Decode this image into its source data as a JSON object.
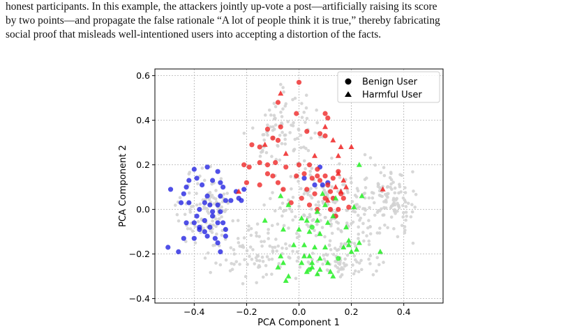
{
  "paragraph": {
    "lines": [
      "honest participants. In this example, the attackers jointly up-vote a post—artificially raising its score",
      "by two points—and propagate the false rationale “A lot of people think it is true,” thereby fabricating",
      "social proof that misleads well-intentioned users into accepting a distortion of the facts."
    ]
  },
  "chart_data": {
    "type": "scatter",
    "xlabel": "PCA Component 1",
    "ylabel": "PCA Component 2",
    "xlim": [
      -0.55,
      0.55
    ],
    "ylim": [
      -0.42,
      0.63
    ],
    "xticks": [
      -0.4,
      -0.2,
      0.0,
      0.2,
      0.4
    ],
    "yticks": [
      -0.4,
      -0.2,
      0.0,
      0.2,
      0.4,
      0.6
    ],
    "xtick_labels": [
      "−0.4",
      "−0.2",
      "0.0",
      "0.2",
      "0.4"
    ],
    "ytick_labels": [
      "−0.4",
      "−0.2",
      "0.0",
      "0.2",
      "0.4",
      "0.6"
    ],
    "grid": true,
    "legend_position": "top-right",
    "legend": [
      {
        "label": "Benign User",
        "marker": "circle"
      },
      {
        "label": "Harmful User",
        "marker": "triangle"
      }
    ],
    "colors": {
      "background": "#d3d3d3",
      "blue": "#1f1fe0",
      "red": "#ee2222",
      "green": "#22ee22"
    },
    "series": [
      {
        "color": "blue",
        "marker": "circle",
        "points": [
          [
            -0.49,
            0.09
          ],
          [
            -0.43,
            0.1
          ],
          [
            -0.42,
            0.13
          ],
          [
            -0.44,
            0.07
          ],
          [
            -0.4,
            0.18
          ],
          [
            -0.35,
            0.19
          ],
          [
            -0.39,
            0.14
          ],
          [
            -0.37,
            0.11
          ],
          [
            -0.33,
            0.13
          ],
          [
            -0.31,
            0.17
          ],
          [
            -0.3,
            0.12
          ],
          [
            -0.29,
            0.1
          ],
          [
            -0.35,
            0.06
          ],
          [
            -0.36,
            0.03
          ],
          [
            -0.34,
            0.02
          ],
          [
            -0.31,
            0.02
          ],
          [
            -0.28,
            0.04
          ],
          [
            -0.3,
            0.06
          ],
          [
            -0.42,
            0.03
          ],
          [
            -0.45,
            0.03
          ],
          [
            -0.38,
            0.0
          ],
          [
            -0.33,
            -0.01
          ],
          [
            -0.3,
            -0.01
          ],
          [
            -0.36,
            -0.05
          ],
          [
            -0.39,
            -0.03
          ],
          [
            -0.33,
            -0.03
          ],
          [
            -0.4,
            -0.06
          ],
          [
            -0.43,
            -0.06
          ],
          [
            -0.34,
            -0.08
          ],
          [
            -0.38,
            -0.08
          ],
          [
            -0.36,
            -0.1
          ],
          [
            -0.31,
            -0.06
          ],
          [
            -0.29,
            -0.06
          ],
          [
            -0.28,
            -0.09
          ],
          [
            -0.32,
            -0.13
          ],
          [
            -0.35,
            -0.12
          ],
          [
            -0.4,
            -0.13
          ],
          [
            -0.44,
            -0.13
          ],
          [
            -0.31,
            -0.15
          ],
          [
            -0.28,
            -0.12
          ],
          [
            -0.5,
            -0.17
          ],
          [
            -0.46,
            -0.19
          ],
          [
            -0.3,
            -0.19
          ],
          [
            -0.23,
            0.05
          ],
          [
            -0.24,
            0.08
          ],
          [
            -0.22,
            0.04
          ],
          [
            -0.26,
            0.04
          ],
          [
            -0.38,
            -0.09
          ],
          [
            0.02,
            0.14
          ],
          [
            0.06,
            0.11
          ],
          [
            0.09,
            0.11
          ],
          [
            0.11,
            0.12
          ],
          [
            0.08,
            0.19
          ],
          [
            -0.21,
            0.09
          ]
        ]
      },
      {
        "color": "red",
        "marker": "circle",
        "points": [
          [
            0.0,
            0.57
          ],
          [
            -0.08,
            0.48
          ],
          [
            -0.01,
            0.43
          ],
          [
            0.1,
            0.43
          ],
          [
            0.11,
            0.41
          ],
          [
            -0.07,
            0.37
          ],
          [
            -0.12,
            0.36
          ],
          [
            -0.1,
            0.32
          ],
          [
            -0.08,
            0.31
          ],
          [
            0.03,
            0.35
          ],
          [
            0.08,
            0.34
          ],
          [
            0.1,
            0.33
          ],
          [
            -0.18,
            0.29
          ],
          [
            -0.15,
            0.28
          ],
          [
            -0.21,
            0.2
          ],
          [
            -0.19,
            0.19
          ],
          [
            -0.15,
            0.21
          ],
          [
            -0.12,
            0.2
          ],
          [
            -0.09,
            0.21
          ],
          [
            -0.05,
            0.19
          ],
          [
            0.0,
            0.2
          ],
          [
            0.04,
            0.2
          ],
          [
            0.07,
            0.18
          ],
          [
            0.1,
            0.15
          ],
          [
            0.13,
            0.14
          ],
          [
            0.15,
            0.17
          ],
          [
            -0.12,
            0.16
          ],
          [
            -0.1,
            0.15
          ],
          [
            -0.08,
            0.12
          ],
          [
            -0.01,
            0.15
          ],
          [
            0.02,
            0.16
          ],
          [
            0.05,
            0.14
          ],
          [
            0.08,
            0.13
          ],
          [
            0.11,
            0.11
          ],
          [
            -0.15,
            0.11
          ],
          [
            -0.06,
            0.09
          ],
          [
            0.03,
            0.09
          ],
          [
            0.06,
            0.07
          ],
          [
            0.1,
            0.05
          ],
          [
            0.13,
            0.05
          ],
          [
            0.16,
            0.07
          ],
          [
            0.17,
            0.05
          ],
          [
            0.01,
            0.05
          ],
          [
            -0.03,
            0.03
          ],
          [
            0.04,
            0.02
          ],
          [
            0.07,
            0.0
          ],
          [
            0.12,
            0.0
          ],
          [
            0.15,
            0.0
          ],
          [
            0.19,
            0.01
          ],
          [
            0.14,
            -0.03
          ],
          [
            0.07,
            0.15
          ],
          [
            0.12,
            0.08
          ],
          [
            -0.2,
            0.12
          ]
        ]
      },
      {
        "color": "red",
        "marker": "triangle",
        "points": [
          [
            -0.07,
            0.52
          ],
          [
            0.1,
            0.37
          ],
          [
            0.2,
            0.28
          ],
          [
            -0.13,
            0.29
          ],
          [
            0.13,
            0.31
          ],
          [
            0.16,
            0.28
          ],
          [
            -0.05,
            0.25
          ],
          [
            0.06,
            0.24
          ],
          [
            0.15,
            0.24
          ],
          [
            0.17,
            0.13
          ],
          [
            0.15,
            0.16
          ],
          [
            0.14,
            0.1
          ],
          [
            0.18,
            0.1
          ],
          [
            -0.23,
            0.08
          ],
          [
            0.11,
            0.04
          ],
          [
            0.16,
            0.08
          ],
          [
            0.32,
            0.09
          ]
        ]
      },
      {
        "color": "green",
        "marker": "circle",
        "points": [
          [
            0.05,
            -0.08
          ],
          [
            0.15,
            -0.22
          ],
          [
            0.04,
            -0.27
          ]
        ]
      },
      {
        "color": "green",
        "marker": "triangle",
        "points": [
          [
            0.23,
            0.2
          ],
          [
            -0.07,
            0.06
          ],
          [
            0.09,
            0.07
          ],
          [
            0.14,
            0.05
          ],
          [
            0.24,
            0.06
          ],
          [
            -0.04,
            0.02
          ],
          [
            0.1,
            0.02
          ],
          [
            0.21,
            0.01
          ],
          [
            0.07,
            -0.01
          ],
          [
            0.01,
            -0.04
          ],
          [
            0.13,
            -0.03
          ],
          [
            -0.13,
            -0.05
          ],
          [
            0.03,
            -0.05
          ],
          [
            0.07,
            -0.05
          ],
          [
            0.11,
            -0.06
          ],
          [
            0.18,
            -0.08
          ],
          [
            -0.06,
            -0.09
          ],
          [
            0.0,
            -0.09
          ],
          [
            0.04,
            -0.1
          ],
          [
            0.08,
            -0.11
          ],
          [
            0.19,
            -0.14
          ],
          [
            0.23,
            -0.15
          ],
          [
            -0.02,
            -0.16
          ],
          [
            0.02,
            -0.16
          ],
          [
            0.06,
            -0.17
          ],
          [
            0.1,
            -0.17
          ],
          [
            0.17,
            -0.17
          ],
          [
            0.19,
            -0.16
          ],
          [
            0.31,
            -0.19
          ],
          [
            0.2,
            -0.19
          ],
          [
            0.22,
            -0.18
          ],
          [
            -0.07,
            -0.21
          ],
          [
            0.02,
            -0.21
          ],
          [
            0.04,
            -0.21
          ],
          [
            0.08,
            -0.22
          ],
          [
            -0.06,
            -0.24
          ],
          [
            0.05,
            -0.24
          ],
          [
            0.11,
            -0.24
          ],
          [
            0.01,
            -0.24
          ],
          [
            -0.08,
            -0.26
          ],
          [
            0.05,
            -0.26
          ],
          [
            0.08,
            -0.27
          ],
          [
            0.03,
            -0.28
          ],
          [
            0.07,
            -0.29
          ],
          [
            0.12,
            -0.28
          ],
          [
            -0.04,
            -0.3
          ],
          [
            0.13,
            -0.3
          ],
          [
            -0.05,
            -0.32
          ]
        ]
      }
    ]
  }
}
